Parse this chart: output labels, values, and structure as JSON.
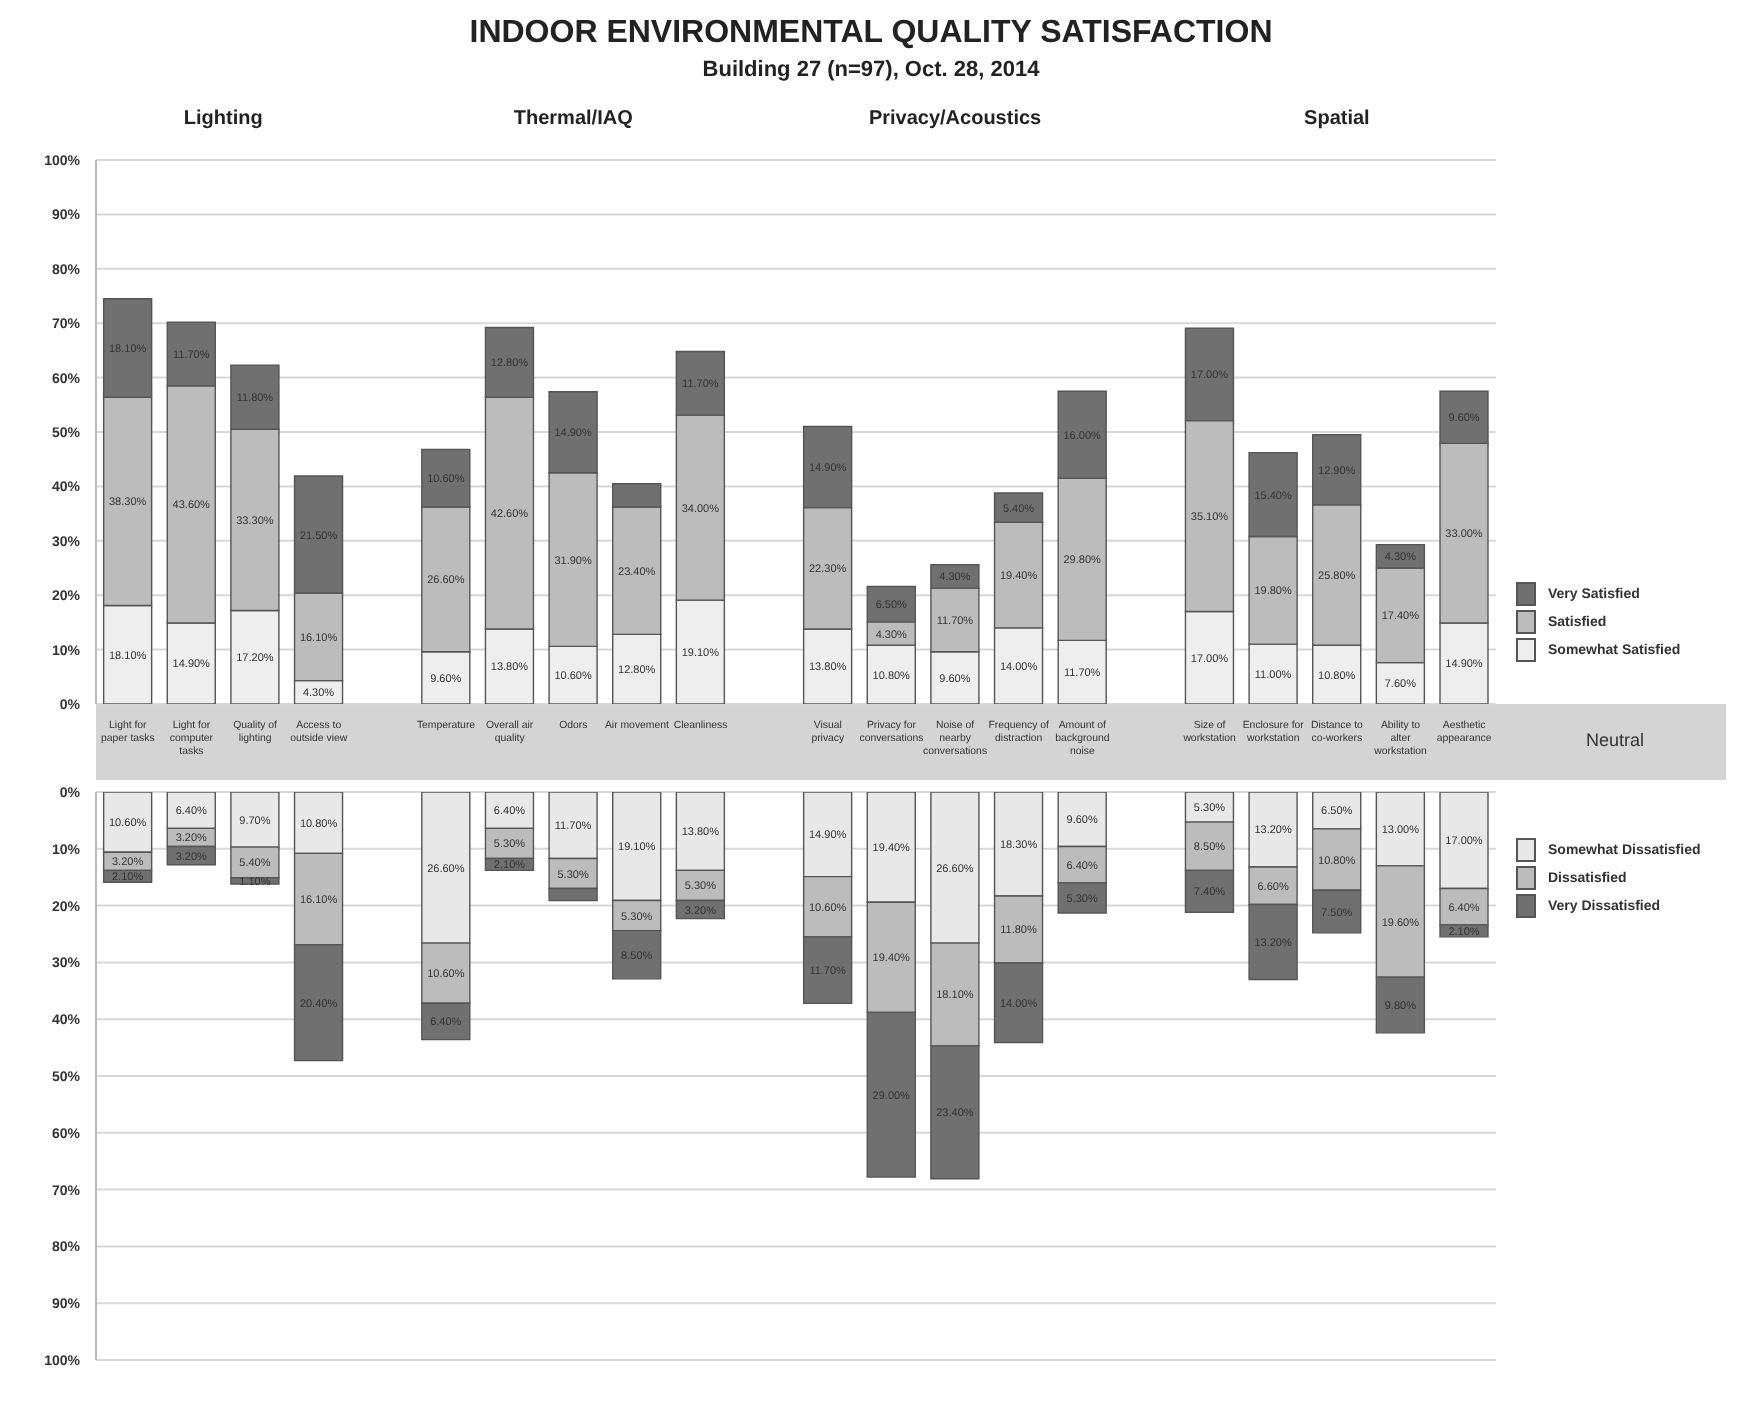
{
  "chart_data": [
    {
      "type": "bar",
      "stacked": true,
      "title": "INDOOR ENVIRONMENTAL QUALITY SATISFACTION",
      "subtitle": "Building 27 (n=97), Oct. 28, 2014",
      "annotations": [
        "Lighting",
        "Thermal/IAQ",
        "Privacy/Acoustics",
        "Spatial"
      ],
      "categories": [
        "Light for paper tasks",
        "Light for computer tasks",
        "Quality of lighting",
        "Access to outside view",
        null,
        "Temperature",
        "Overall air quality",
        "Odors",
        "Air movement",
        "Cleanliness",
        null,
        "Visual privacy",
        "Privacy for conversations",
        "Noise of nearby conversations",
        "Frequency of distraction",
        "Amount of background noise",
        null,
        "Size of workstation",
        "Enclosure for workstation",
        "Distance to co-workers",
        "Ability to alter workstation",
        "Aesthetic appearance"
      ],
      "series": [
        {
          "name": "Somewhat Satisfied",
          "color": "#eeeeee",
          "values": [
            18.1,
            14.9,
            17.2,
            4.3,
            null,
            9.6,
            13.8,
            10.6,
            12.8,
            19.1,
            null,
            13.8,
            10.8,
            9.6,
            14.0,
            11.7,
            null,
            17.0,
            11.0,
            10.8,
            7.6,
            14.9
          ],
          "value_labels": [
            "18.10%",
            "14.90%",
            "17.20%",
            "4.30%",
            null,
            "9.60%",
            "13.80%",
            "10.60%",
            "12.80%",
            "19.10%",
            null,
            "13.80%",
            "10.80%",
            "9.60%",
            "14.00%",
            "11.70%",
            null,
            "17.00%",
            "11.00%",
            "10.80%",
            "7.60%",
            "14.90%"
          ]
        },
        {
          "name": "Satisfied",
          "color": "#bcbcbc",
          "values": [
            38.3,
            43.6,
            33.3,
            16.1,
            null,
            26.6,
            42.6,
            31.9,
            23.4,
            34.0,
            null,
            22.3,
            4.3,
            11.7,
            19.4,
            29.8,
            null,
            35.1,
            19.8,
            25.8,
            17.4,
            33.0
          ],
          "value_labels": [
            "38.30%",
            "43.60%",
            "33.30%",
            "16.10%",
            null,
            "26.60%",
            "42.60%",
            "31.90%",
            "23.40%",
            "34.00%",
            null,
            "22.30%",
            "4.30%",
            "11.70%",
            "19.40%",
            "29.80%",
            null,
            "35.10%",
            "19.80%",
            "25.80%",
            "17.40%",
            "33.00%"
          ]
        },
        {
          "name": "Very Satisfied",
          "color": "#707070",
          "values": [
            18.1,
            11.7,
            11.8,
            21.5,
            null,
            10.6,
            12.8,
            14.9,
            4.3,
            11.7,
            null,
            14.9,
            6.5,
            4.3,
            5.4,
            16.0,
            null,
            17.0,
            15.4,
            12.9,
            4.3,
            9.6
          ],
          "value_labels": [
            "18.10%",
            "11.70%",
            "11.80%",
            "21.50%",
            null,
            "10.60%",
            "12.80%",
            "14.90%",
            null,
            "11.70%",
            null,
            "14.90%",
            "6.50%",
            "4.30%",
            "5.40%",
            "16.00%",
            null,
            "17.00%",
            "15.40%",
            "12.90%",
            "4.30%",
            "9.60%"
          ]
        }
      ],
      "ylim": [
        0,
        100
      ],
      "yticks": [
        {
          "value": 0,
          "label": "0%"
        },
        {
          "value": 10,
          "label": "10%"
        },
        {
          "value": 20,
          "label": "20%"
        },
        {
          "value": 30,
          "label": "30%"
        },
        {
          "value": 40,
          "label": "40%"
        },
        {
          "value": 50,
          "label": "50%"
        },
        {
          "value": 60,
          "label": "60%"
        },
        {
          "value": 70,
          "label": "70%"
        },
        {
          "value": 80,
          "label": "80%"
        },
        {
          "value": 90,
          "label": "90%"
        },
        {
          "value": 100,
          "label": "100%"
        }
      ],
      "grid": "y",
      "legend": "right"
    },
    {
      "type": "bar",
      "stacked": true,
      "tick_labels": "y",
      "annotations": [
        "Neutral"
      ],
      "categories": [
        null,
        null,
        null,
        null,
        null,
        null,
        null,
        null,
        null,
        null,
        null,
        null,
        null,
        null,
        null,
        null,
        null,
        null,
        null,
        null,
        null,
        null
      ],
      "series": [
        {
          "name": "Somewhat Dissatisfied",
          "color": "#e8e8e8",
          "values": [
            10.6,
            6.4,
            9.7,
            10.8,
            null,
            26.6,
            6.4,
            11.7,
            19.1,
            13.8,
            null,
            14.9,
            19.4,
            26.6,
            18.3,
            9.6,
            null,
            5.3,
            13.2,
            6.5,
            13.0,
            17.0
          ],
          "value_labels": [
            "10.60%",
            "6.40%",
            "9.70%",
            "10.80%",
            null,
            "26.60%",
            "6.40%",
            "11.70%",
            "19.10%",
            "13.80%",
            null,
            "14.90%",
            "19.40%",
            "26.60%",
            "18.30%",
            "9.60%",
            null,
            "5.30%",
            "13.20%",
            "6.50%",
            "13.00%",
            "17.00%"
          ]
        },
        {
          "name": "Dissatisfied",
          "color": "#bcbcbc",
          "values": [
            3.2,
            3.2,
            5.4,
            16.1,
            null,
            10.6,
            5.3,
            5.3,
            5.3,
            5.3,
            null,
            10.6,
            19.4,
            18.1,
            11.8,
            6.4,
            null,
            8.5,
            6.6,
            10.8,
            19.6,
            6.4
          ],
          "value_labels": [
            "3.20%",
            "3.20%",
            "5.40%",
            "16.10%",
            null,
            "10.60%",
            "5.30%",
            "5.30%",
            "5.30%",
            "5.30%",
            null,
            "10.60%",
            "19.40%",
            "18.10%",
            "11.80%",
            "6.40%",
            null,
            "8.50%",
            "6.60%",
            "10.80%",
            "19.60%",
            "6.40%"
          ]
        },
        {
          "name": "Very Dissatisfied",
          "color": "#707070",
          "values": [
            2.1,
            3.2,
            1.1,
            20.4,
            null,
            6.4,
            2.1,
            2.1,
            8.5,
            3.2,
            null,
            11.7,
            29.0,
            23.4,
            14.0,
            5.3,
            null,
            7.4,
            13.2,
            7.5,
            9.8,
            2.1
          ],
          "value_labels": [
            "2.10%",
            "3.20%",
            "1.10%",
            "20.40%",
            null,
            "6.40%",
            "2.10%",
            null,
            "8.50%",
            "3.20%",
            null,
            "11.70%",
            "29.00%",
            "23.40%",
            "14.00%",
            "5.30%",
            null,
            "7.40%",
            "13.20%",
            "7.50%",
            "9.80%",
            "2.10%"
          ]
        }
      ],
      "ylim": [
        100,
        0
      ],
      "yticks": [
        {
          "value": 0,
          "label": "0%"
        },
        {
          "value": 10,
          "label": "10%"
        },
        {
          "value": 20,
          "label": "20%"
        },
        {
          "value": 30,
          "label": "30%"
        },
        {
          "value": 40,
          "label": "40%"
        },
        {
          "value": 50,
          "label": "50%"
        },
        {
          "value": 60,
          "label": "60%"
        },
        {
          "value": 70,
          "label": "70%"
        },
        {
          "value": 80,
          "label": "80%"
        },
        {
          "value": 90,
          "label": "90%"
        },
        {
          "value": 100,
          "label": "100%"
        }
      ],
      "grid": "y",
      "legend": "right"
    }
  ]
}
